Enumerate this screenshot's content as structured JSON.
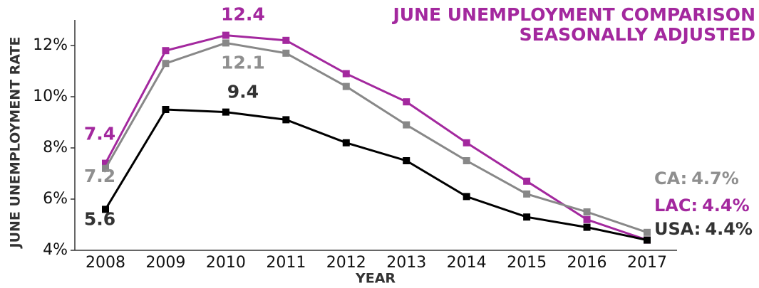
{
  "chart_data": {
    "type": "line",
    "title": "JUNE UNEMPLOYMENT COMPARISON",
    "subtitle": "SEASONALLY ADJUSTED",
    "x_label": "YEAR",
    "y_label": "JUNE UNEMPLOYMENT RATE",
    "categories": [
      "2008",
      "2009",
      "2010",
      "2011",
      "2012",
      "2013",
      "2014",
      "2015",
      "2016",
      "2017"
    ],
    "series": [
      {
        "name": "LAC:",
        "color": "#a3289e",
        "label_color": "#a3289e",
        "values": [
          7.4,
          11.8,
          12.4,
          12.2,
          10.9,
          9.8,
          8.2,
          6.7,
          5.2,
          4.4
        ],
        "value_labels": [
          "7.4",
          null,
          "12.4",
          null,
          null,
          null,
          null,
          null,
          null,
          "4.4%"
        ]
      },
      {
        "name": "CA:",
        "color": "#888888",
        "label_color": "#8f8f8f",
        "values": [
          7.2,
          11.3,
          12.1,
          11.7,
          10.4,
          8.9,
          7.5,
          6.2,
          5.5,
          4.7
        ],
        "value_labels": [
          "7.2",
          null,
          "12.1",
          null,
          null,
          null,
          null,
          null,
          null,
          "4.7%"
        ]
      },
      {
        "name": "USA:",
        "color": "#000000",
        "label_color": "#333333",
        "values": [
          5.6,
          9.5,
          9.4,
          9.1,
          8.2,
          7.5,
          6.1,
          5.3,
          4.9,
          4.4
        ],
        "value_labels": [
          "5.6",
          null,
          "9.4",
          null,
          null,
          null,
          null,
          null,
          null,
          "4.4%"
        ]
      }
    ],
    "ylim": [
      4,
      13
    ],
    "yticks": [
      {
        "value": 4,
        "label": "4%"
      },
      {
        "value": 6,
        "label": "6%"
      },
      {
        "value": 8,
        "label": "8%"
      },
      {
        "value": 10,
        "label": "10%"
      },
      {
        "value": 12,
        "label": "12%"
      }
    ]
  }
}
